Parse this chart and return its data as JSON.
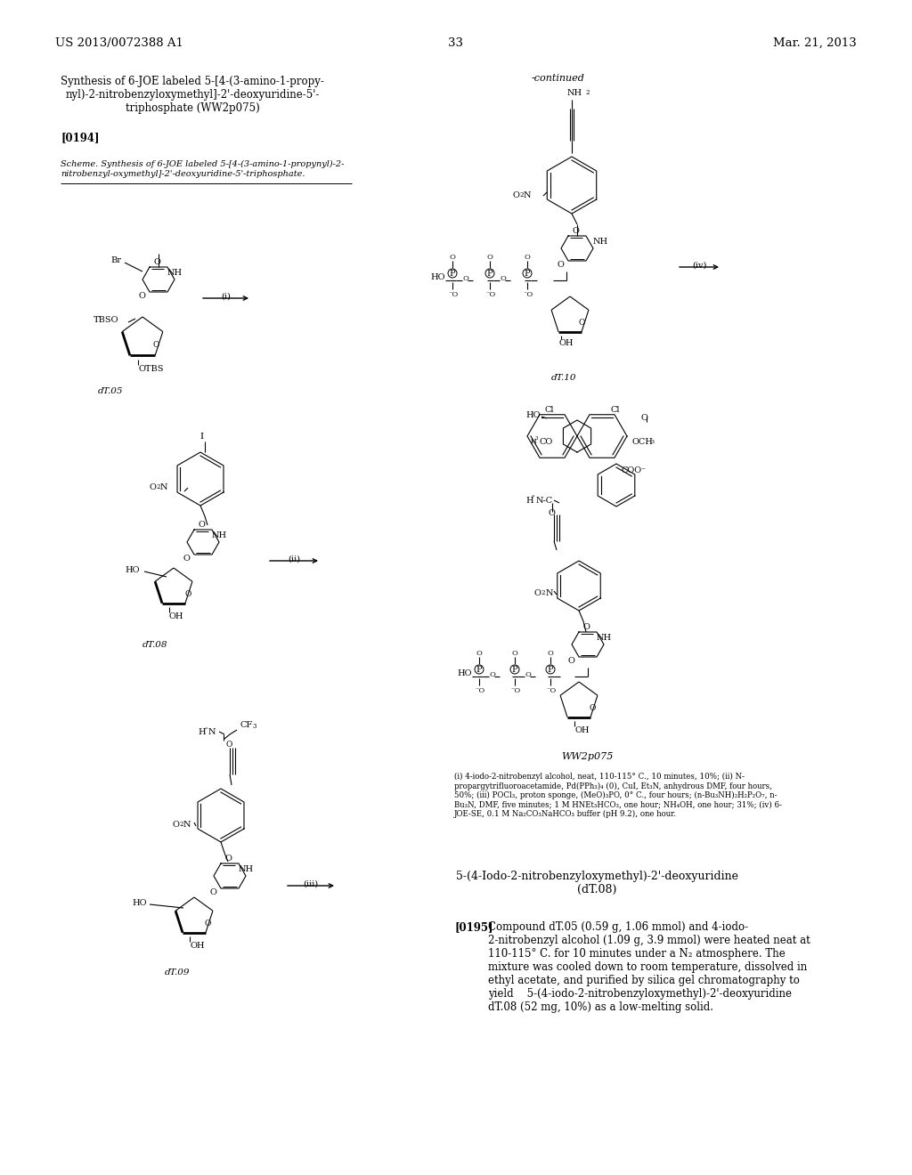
{
  "page_number": "33",
  "patent_number": "US 2013/0072388 A1",
  "date": "Mar. 21, 2013",
  "background_color": "#ffffff",
  "fig_width": 10.24,
  "fig_height": 13.2,
  "dpi": 100
}
